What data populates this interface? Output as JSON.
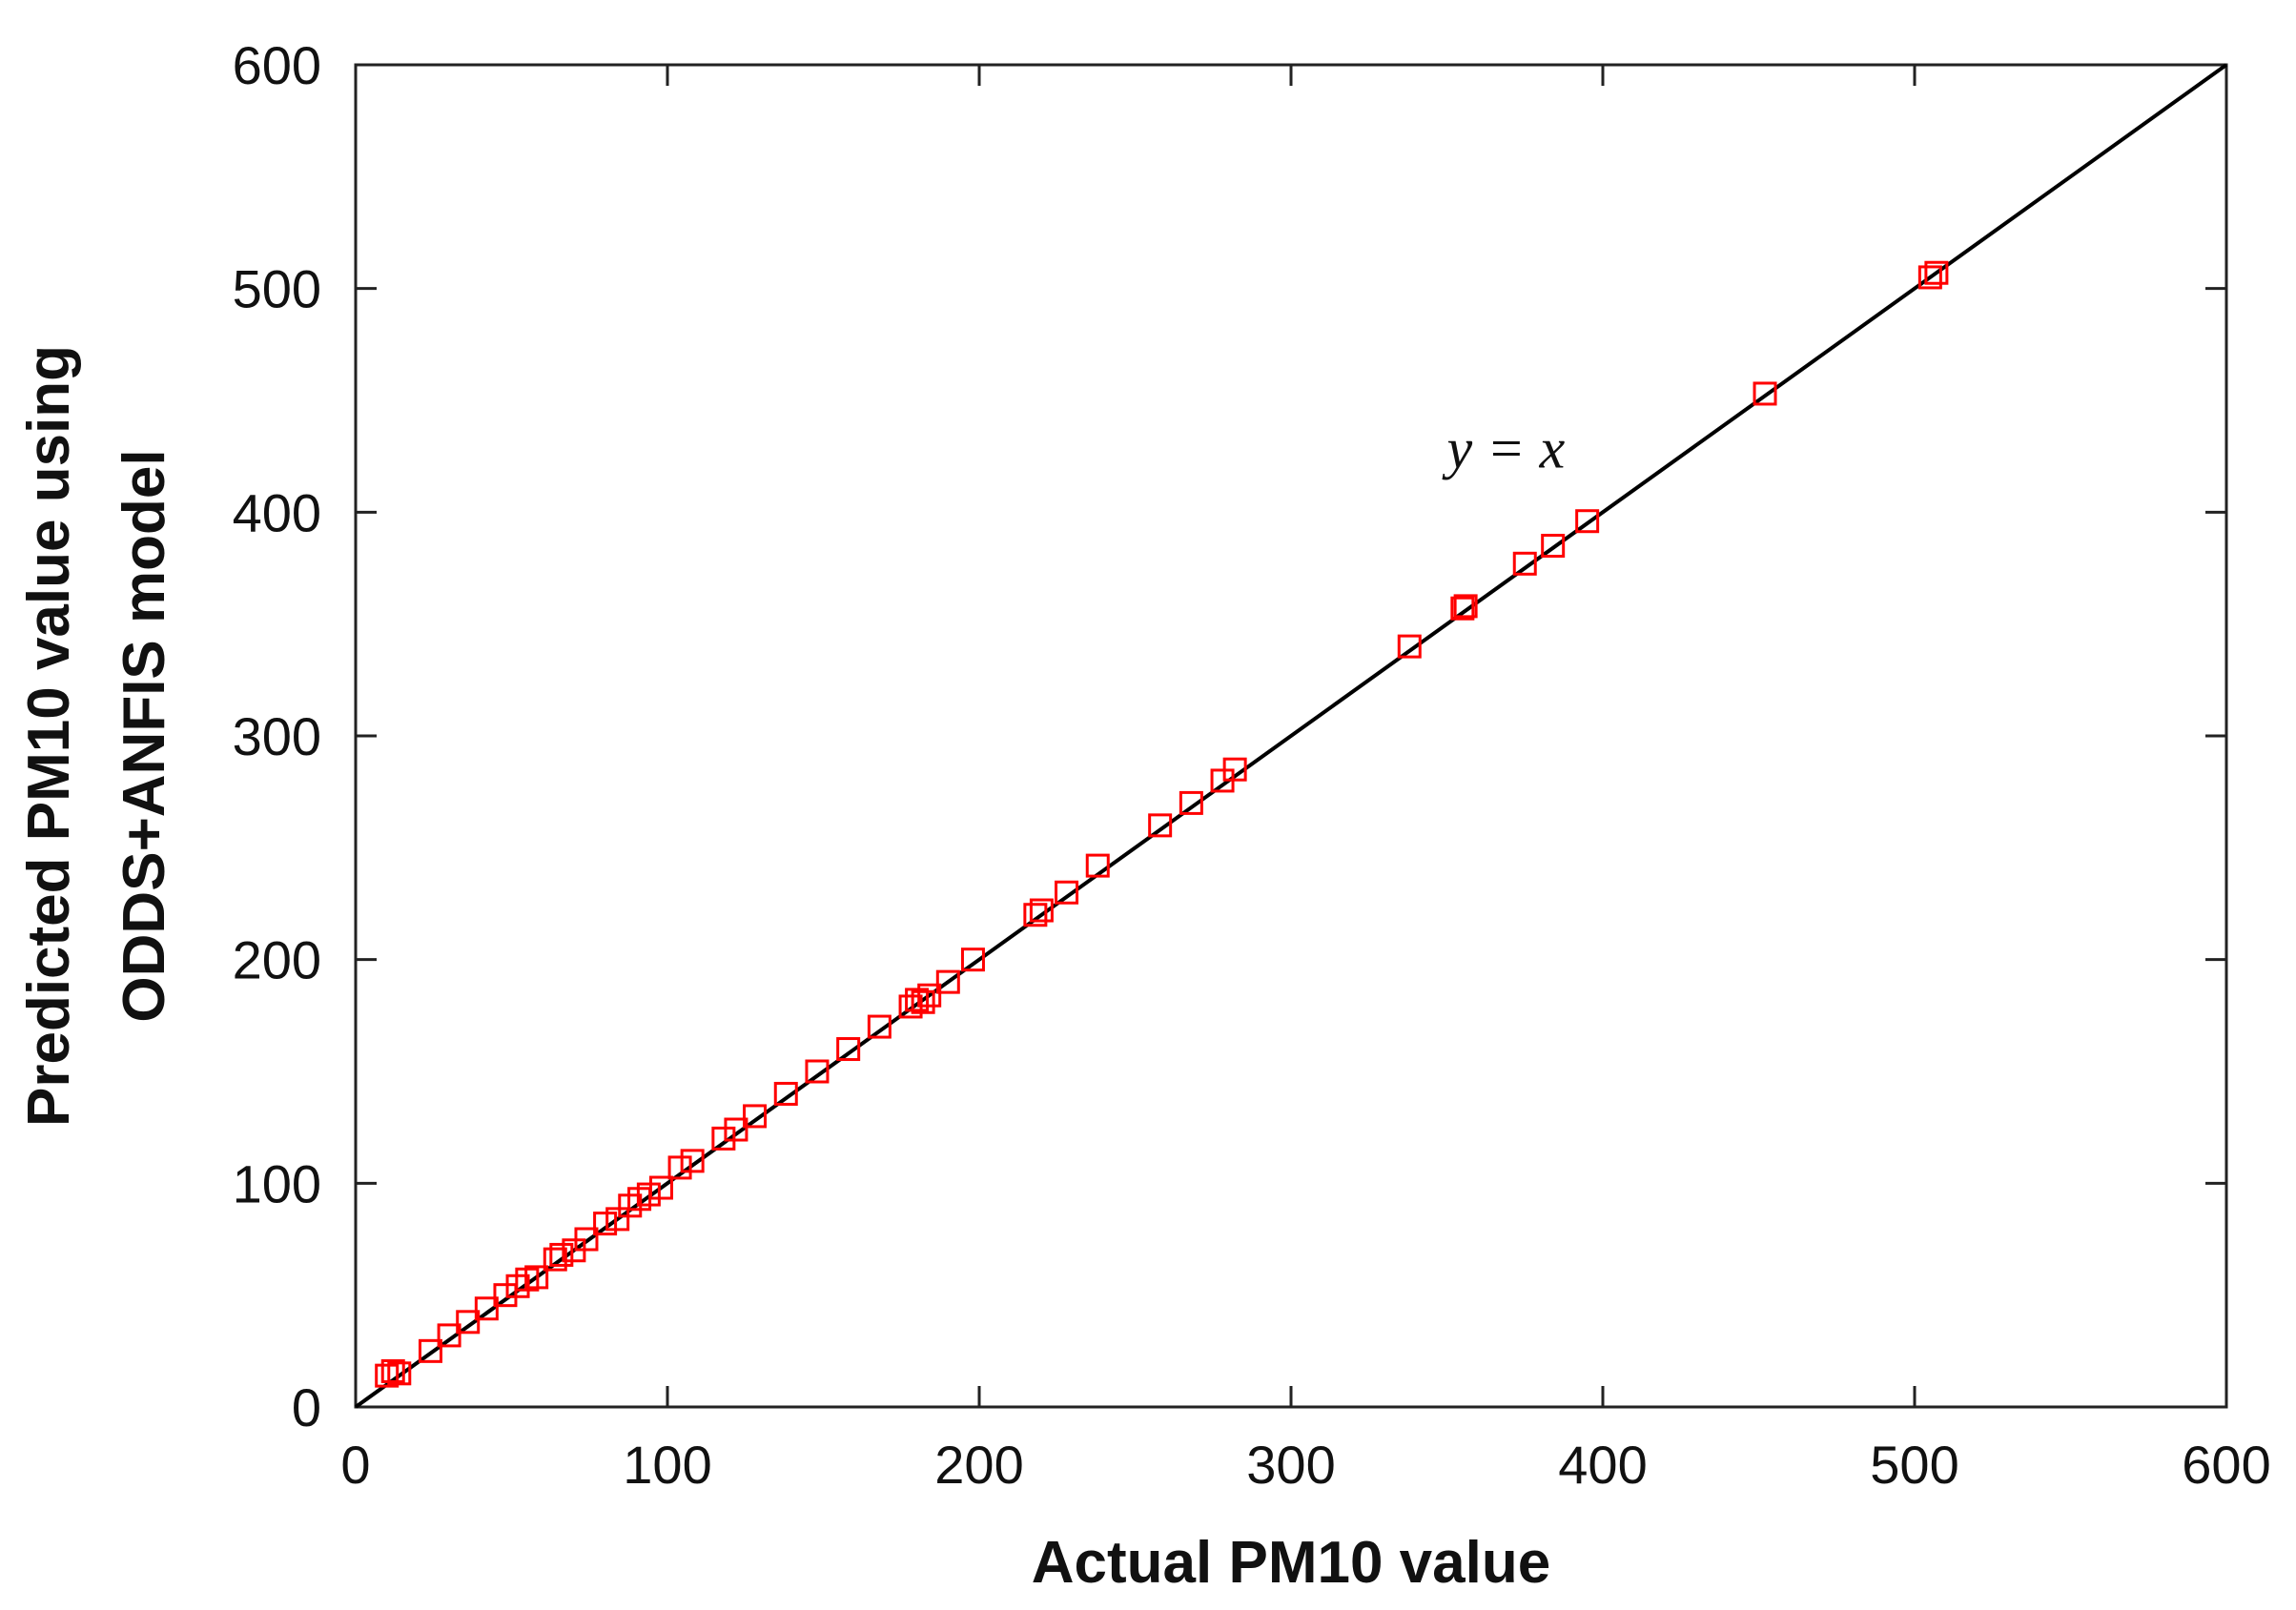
{
  "chart_data": {
    "type": "scatter",
    "xlabel": "Actual PM10 value",
    "ylabel_lines": [
      "Predicted PM10 value using",
      "ODDS+ANFIS model"
    ],
    "xlim": [
      0,
      600
    ],
    "ylim": [
      0,
      600
    ],
    "x_ticks": [
      0,
      100,
      200,
      300,
      400,
      500,
      600
    ],
    "y_ticks": [
      0,
      100,
      200,
      300,
      400,
      500,
      600
    ],
    "grid": false,
    "marker": "open-square",
    "marker_color": "#ff0000",
    "reference_line": {
      "label": "y = x",
      "from": [
        0,
        0
      ],
      "to": [
        600,
        600
      ],
      "color": "#000000"
    },
    "annotation": {
      "text": "y = x",
      "x": 350,
      "y": 420
    },
    "series": [
      {
        "points": [
          [
            10,
            14
          ],
          [
            14,
            15
          ],
          [
            12,
            16
          ],
          [
            24,
            25
          ],
          [
            30,
            32
          ],
          [
            36,
            38
          ],
          [
            42,
            44
          ],
          [
            48,
            50
          ],
          [
            52,
            54
          ],
          [
            55,
            57
          ],
          [
            58,
            58
          ],
          [
            64,
            66
          ],
          [
            66,
            68
          ],
          [
            70,
            70
          ],
          [
            74,
            75
          ],
          [
            80,
            82
          ],
          [
            84,
            84
          ],
          [
            88,
            90
          ],
          [
            91,
            93
          ],
          [
            94,
            95
          ],
          [
            98,
            98
          ],
          [
            104,
            107
          ],
          [
            108,
            110
          ],
          [
            118,
            120
          ],
          [
            122,
            124
          ],
          [
            128,
            130
          ],
          [
            138,
            140
          ],
          [
            148,
            150
          ],
          [
            158,
            160
          ],
          [
            168,
            170
          ],
          [
            178,
            179
          ],
          [
            180,
            182
          ],
          [
            182,
            181
          ],
          [
            184,
            184
          ],
          [
            190,
            190
          ],
          [
            198,
            200
          ],
          [
            218,
            220
          ],
          [
            220,
            222
          ],
          [
            228,
            230
          ],
          [
            238,
            242
          ],
          [
            258,
            260
          ],
          [
            268,
            270
          ],
          [
            278,
            280
          ],
          [
            282,
            285
          ],
          [
            338,
            340
          ],
          [
            355,
            357
          ],
          [
            356,
            358
          ],
          [
            375,
            377
          ],
          [
            384,
            385
          ],
          [
            395,
            396
          ],
          [
            452,
            453
          ],
          [
            505,
            505
          ],
          [
            507,
            507
          ]
        ]
      }
    ]
  }
}
